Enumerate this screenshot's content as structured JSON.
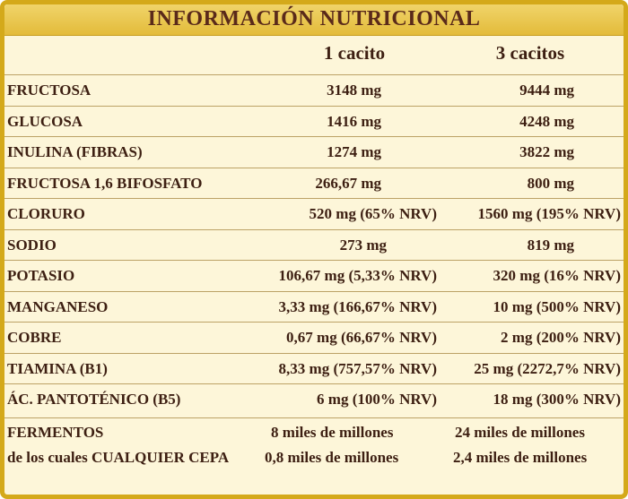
{
  "title": "INFORMACIÓN NUTRICIONAL",
  "columns": [
    "1 cacito",
    "3 cacitos"
  ],
  "rows": [
    {
      "label": "FRUCTOSA",
      "v1": "3148 mg",
      "v2": "9444 mg"
    },
    {
      "label": "GLUCOSA",
      "v1": "1416 mg",
      "v2": "4248 mg"
    },
    {
      "label": "INULINA (FIBRAS)",
      "v1": "1274 mg",
      "v2": "3822 mg"
    },
    {
      "label": "FRUCTOSA 1,6 BIFOSFATO",
      "v1": "266,67 mg",
      "v2": "800 mg"
    },
    {
      "label": "CLORURO",
      "v1": "520 mg (65% NRV)",
      "v2": "1560 mg (195% NRV)"
    },
    {
      "label": "SODIO",
      "v1": "273 mg",
      "v2": "819 mg"
    },
    {
      "label": "POTASIO",
      "v1": "106,67 mg (5,33% NRV)",
      "v2": "320 mg (16% NRV)"
    },
    {
      "label": "MANGANESO",
      "v1": "3,33 mg (166,67% NRV)",
      "v2": "10 mg (500% NRV)"
    },
    {
      "label": "COBRE",
      "v1": "0,67 mg (66,67% NRV)",
      "v2": "2 mg (200% NRV)"
    },
    {
      "label": "TIAMINA (B1)",
      "v1": "8,33 mg (757,57% NRV)",
      "v2": "25 mg (2272,7% NRV)"
    },
    {
      "label": "ÁC. PANTOTÉNICO (B5)",
      "v1": "6 mg (100% NRV)",
      "v2": "18 mg (300% NRV)"
    }
  ],
  "fermentos": {
    "label": "FERMENTOS",
    "sublabel": "de los cuales CUALQUIER CEPA",
    "v1": "8 miles de millones",
    "v2": "24 miles de millones",
    "sub_v1": "0,8 miles de millones",
    "sub_v2": "2,4 miles de millones"
  }
}
